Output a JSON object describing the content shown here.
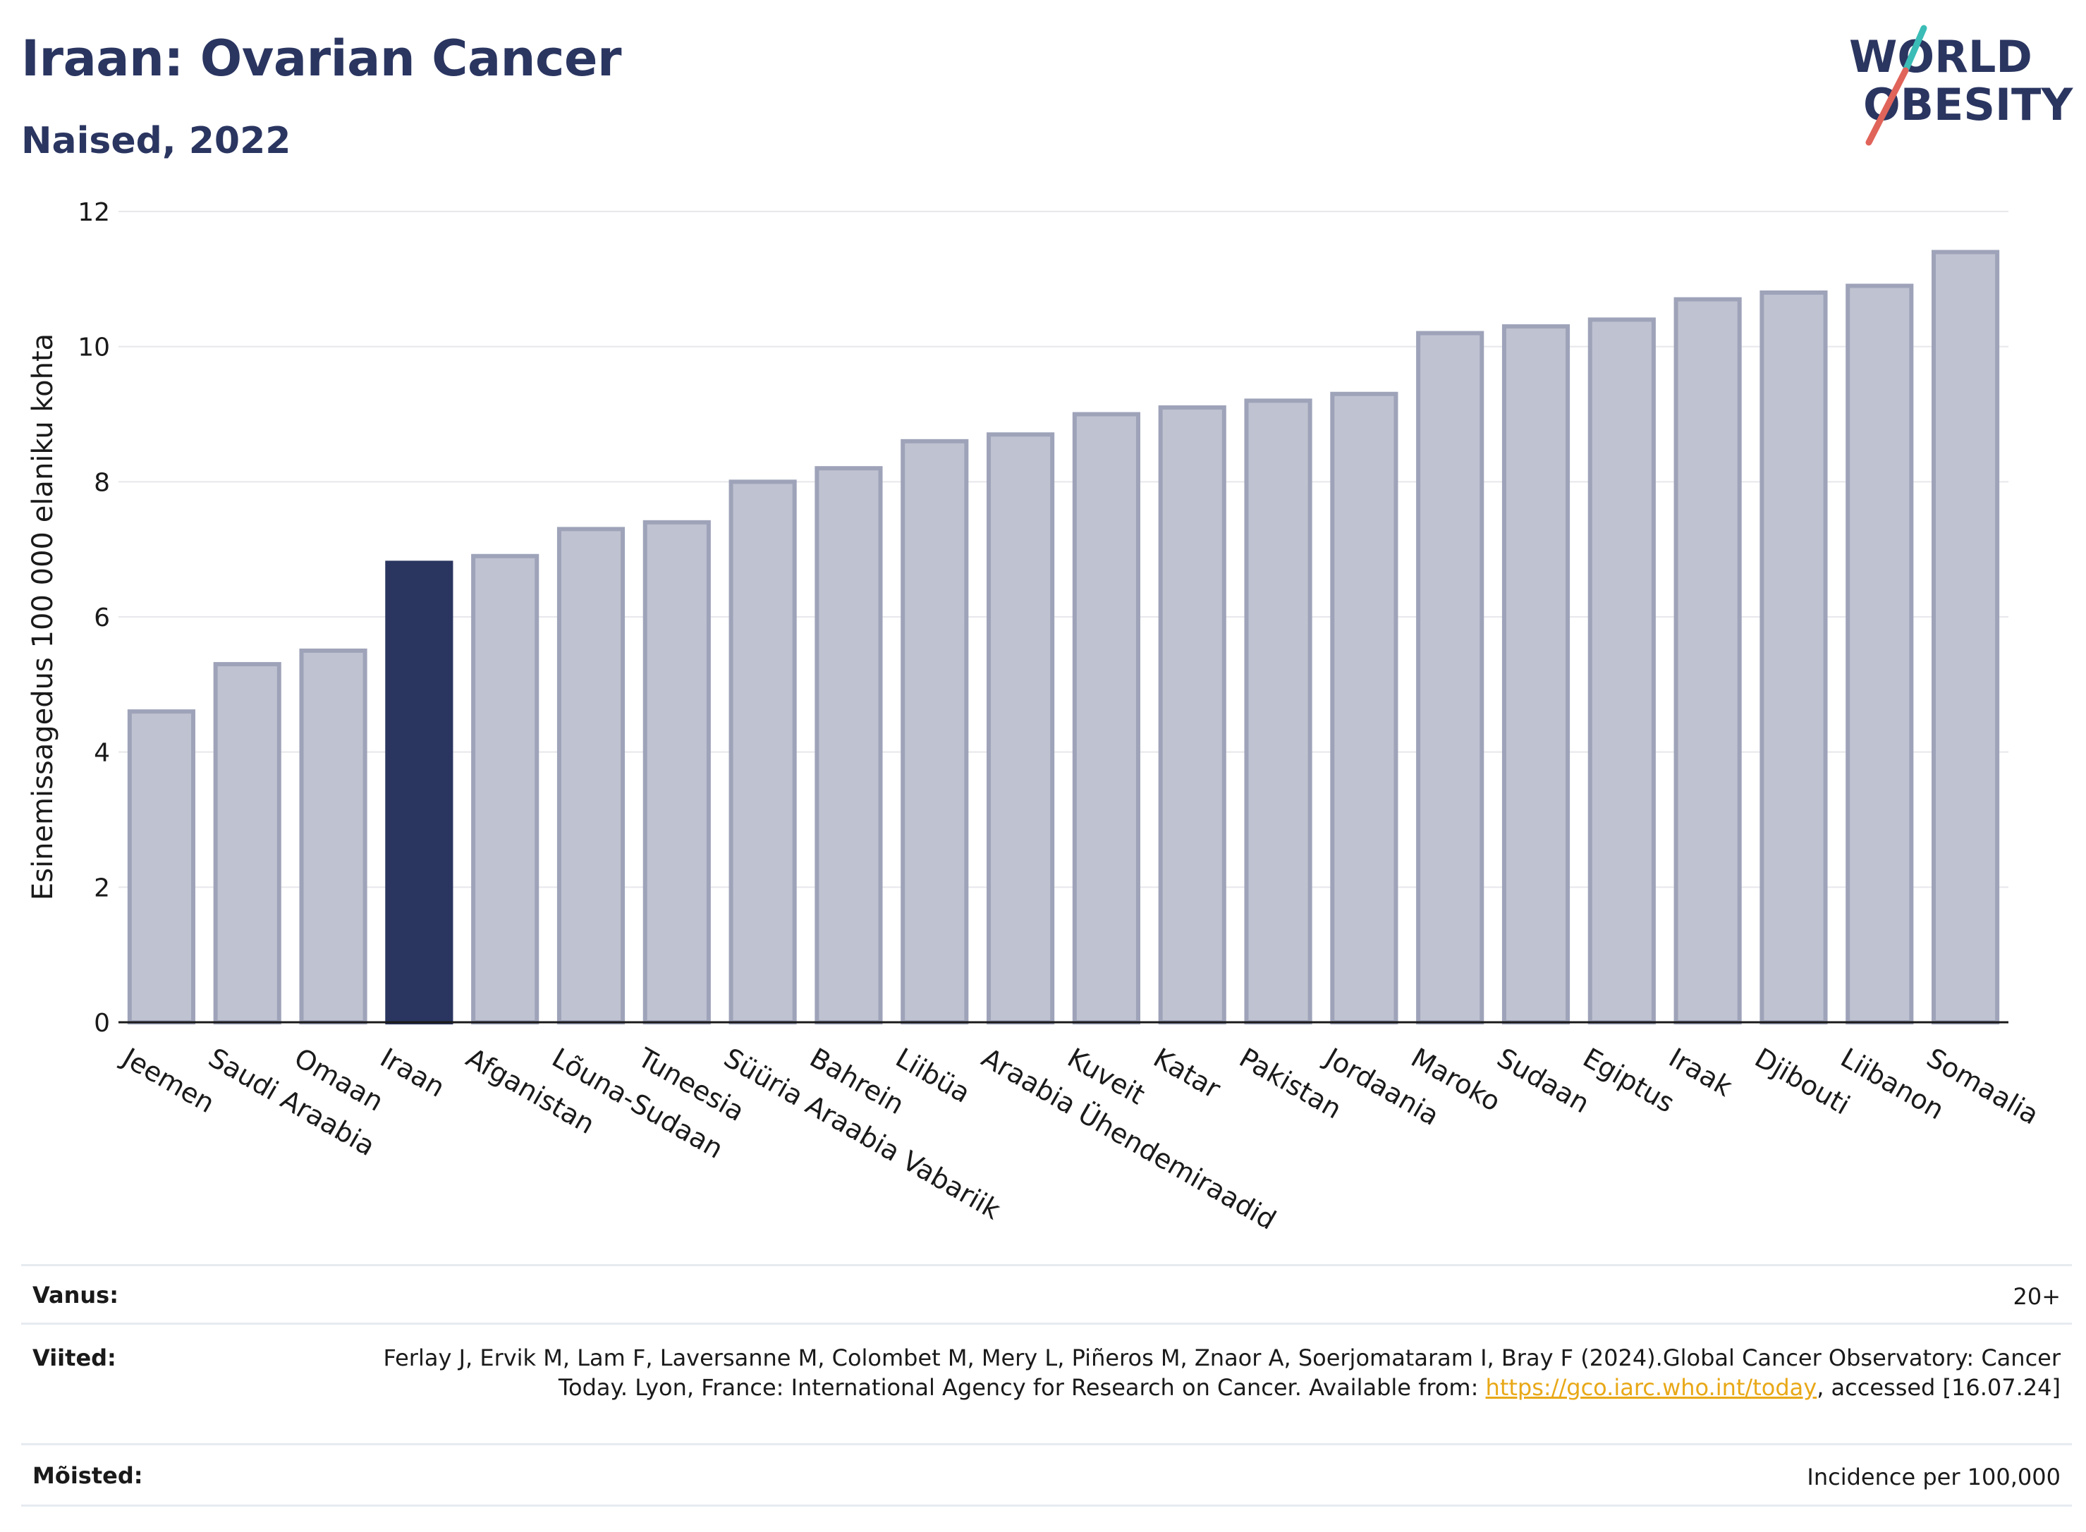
{
  "header": {
    "title": "Iraan: Ovarian Cancer",
    "subtitle": "Naised, 2022"
  },
  "logo": {
    "line1": "WORLD",
    "line2": "OBESITY",
    "colors": {
      "text": "#2a3560",
      "slash_red": "#e0645a",
      "slash_teal": "#3bbcb6"
    }
  },
  "colors": {
    "highlight": "#2a3560",
    "bar": "#bfc2d0",
    "bar_stroke": "#9ea3b9",
    "grid": "#e8e8ec"
  },
  "chart_data": {
    "type": "bar",
    "title": "",
    "xlabel": "",
    "ylabel": "Esinemissagedus 100 000 elaniku kohta",
    "ylim": [
      0,
      12
    ],
    "yticks": [
      0,
      2,
      4,
      6,
      8,
      10,
      12
    ],
    "grid": true,
    "highlight": "Iraan",
    "categories": [
      "Jeemen",
      "Saudi Araabia",
      "Omaan",
      "Iraan",
      "Afganistan",
      "Lõuna-Sudaan",
      "Tuneesia",
      "Süüria Araabia Vabariik",
      "Bahrein",
      "Liibüa",
      "Araabia Ühendemiraadid",
      "Kuveit",
      "Katar",
      "Pakistan",
      "Jordaania",
      "Maroko",
      "Sudaan",
      "Egiptus",
      "Iraak",
      "Djibouti",
      "Liibanon",
      "Somaalia"
    ],
    "values": [
      4.6,
      5.3,
      5.5,
      6.8,
      6.9,
      7.3,
      7.4,
      8.0,
      8.2,
      8.6,
      8.7,
      9.0,
      9.1,
      9.2,
      9.3,
      10.2,
      10.3,
      10.4,
      10.7,
      10.8,
      10.9,
      11.4
    ]
  },
  "meta": {
    "age_label": "Vanus:",
    "age_value": "20+",
    "ref_label": "Viited:",
    "ref_text_1": "Ferlay J, Ervik M, Lam F, Laversanne M, Colombet M, Mery L, Piñeros M, Znaor A, Soerjomataram I, Bray F (2024).Global Cancer Observatory: Cancer Today. Lyon, France: International Agency for Research on Cancer. Available from: ",
    "ref_link": "https://gco.iarc.who.int/today",
    "ref_text_2": ", accessed [16.07.24]",
    "def_label": "Mõisted:",
    "def_value": "Incidence per 100,000"
  }
}
